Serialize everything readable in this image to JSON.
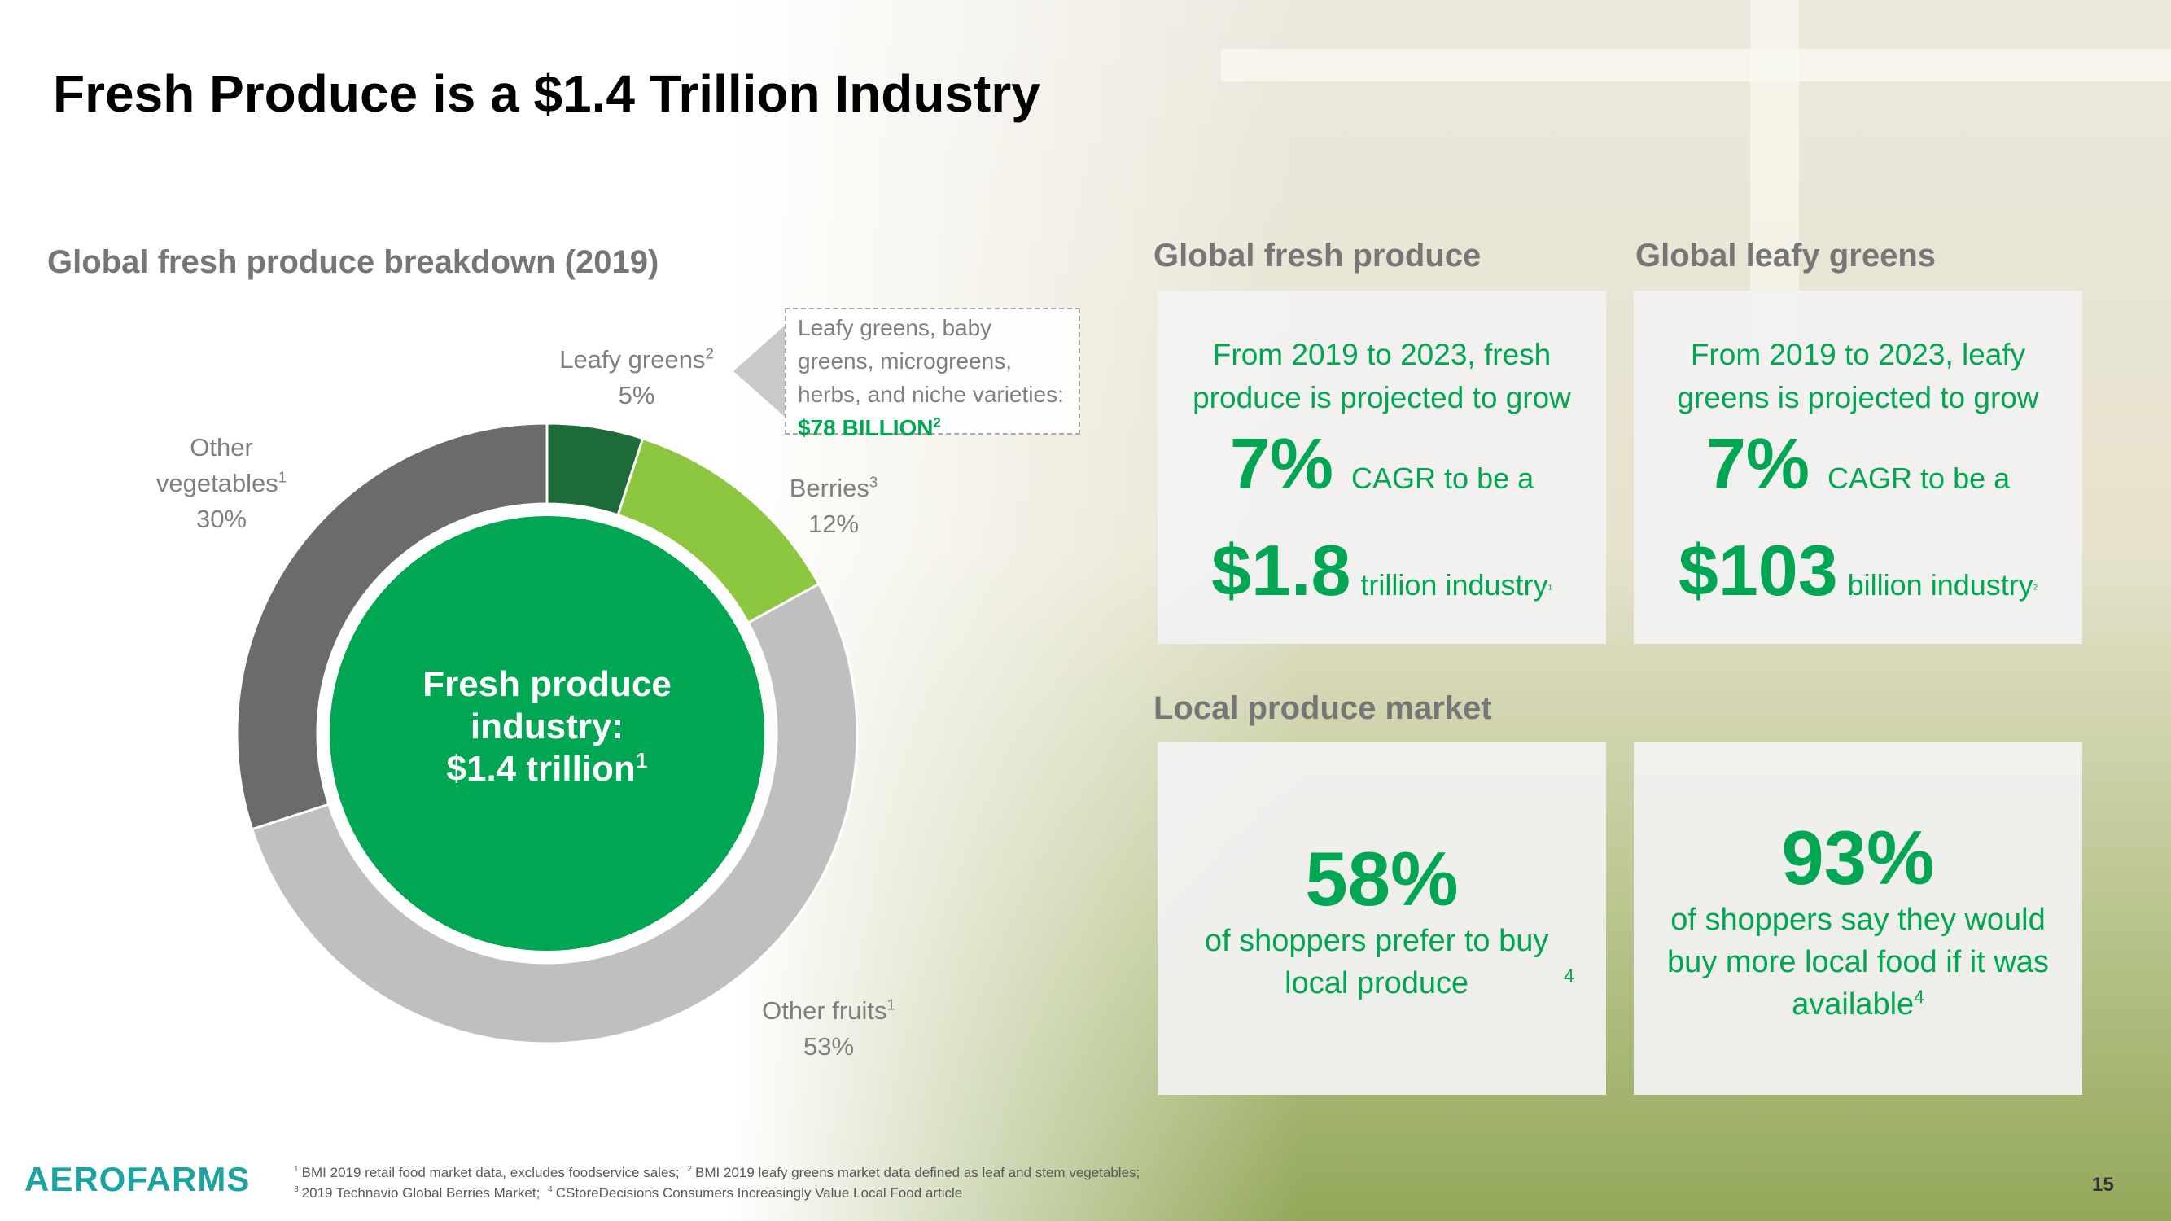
{
  "title": "Fresh Produce is a $1.4 Trillion Industry",
  "chart_data": {
    "type": "pie",
    "title": "Global fresh produce breakdown (2019)",
    "categories": [
      "Leafy greens",
      "Berries",
      "Other fruits",
      "Other vegetables"
    ],
    "notes": [
      "2",
      "3",
      "1",
      "1"
    ],
    "values": [
      5,
      12,
      53,
      30
    ],
    "value_labels": [
      "5%",
      "12%",
      "53%",
      "30%"
    ],
    "colors": [
      "#1d6b38",
      "#8dc63f",
      "#bfbfbf",
      "#6b6b6b"
    ],
    "center_label": {
      "text": "Fresh produce industry:",
      "value": "$1.4 trillion",
      "note": "1"
    },
    "annotation": {
      "text": "Leafy greens, baby greens, microgreens, herbs, and niche varieties:",
      "highlight": "$78 BILLION",
      "note": "2"
    }
  },
  "panels": [
    {
      "heading": "Global fresh produce",
      "text": "From 2019 to 2023, fresh produce is projected to grow",
      "rate": "7%",
      "rate_text": "CAGR to be a",
      "amount": "$1.8",
      "amount_text": "trillion industry",
      "note": "1"
    },
    {
      "heading": "Global leafy greens",
      "text": "From 2019 to 2023, leafy greens is projected to grow",
      "rate": "7%",
      "rate_text": "CAGR to be a",
      "amount": "$103",
      "amount_text": "billion industry",
      "note": "2"
    }
  ],
  "local": {
    "heading": "Local produce market",
    "cards": [
      {
        "figure": "58%",
        "text": "of shoppers prefer to buy local produce",
        "note": "4"
      },
      {
        "figure": "93%",
        "text": "of shoppers say they would buy more local food if it was available",
        "note": "4"
      }
    ]
  },
  "footer": {
    "logo": "AEROFARMS",
    "page": "15",
    "footnotes": [
      {
        "mark": "1",
        "text": "BMI 2019 retail food market data, excludes foodservice sales;"
      },
      {
        "mark": "2",
        "text": "BMI 2019 leafy greens market data defined as leaf and stem vegetables;"
      },
      {
        "mark": "3",
        "text": "2019 Technavio Global Berries Market;"
      },
      {
        "mark": "4",
        "text": "CStoreDecisions Consumers Increasingly Value Local Food article"
      }
    ]
  }
}
